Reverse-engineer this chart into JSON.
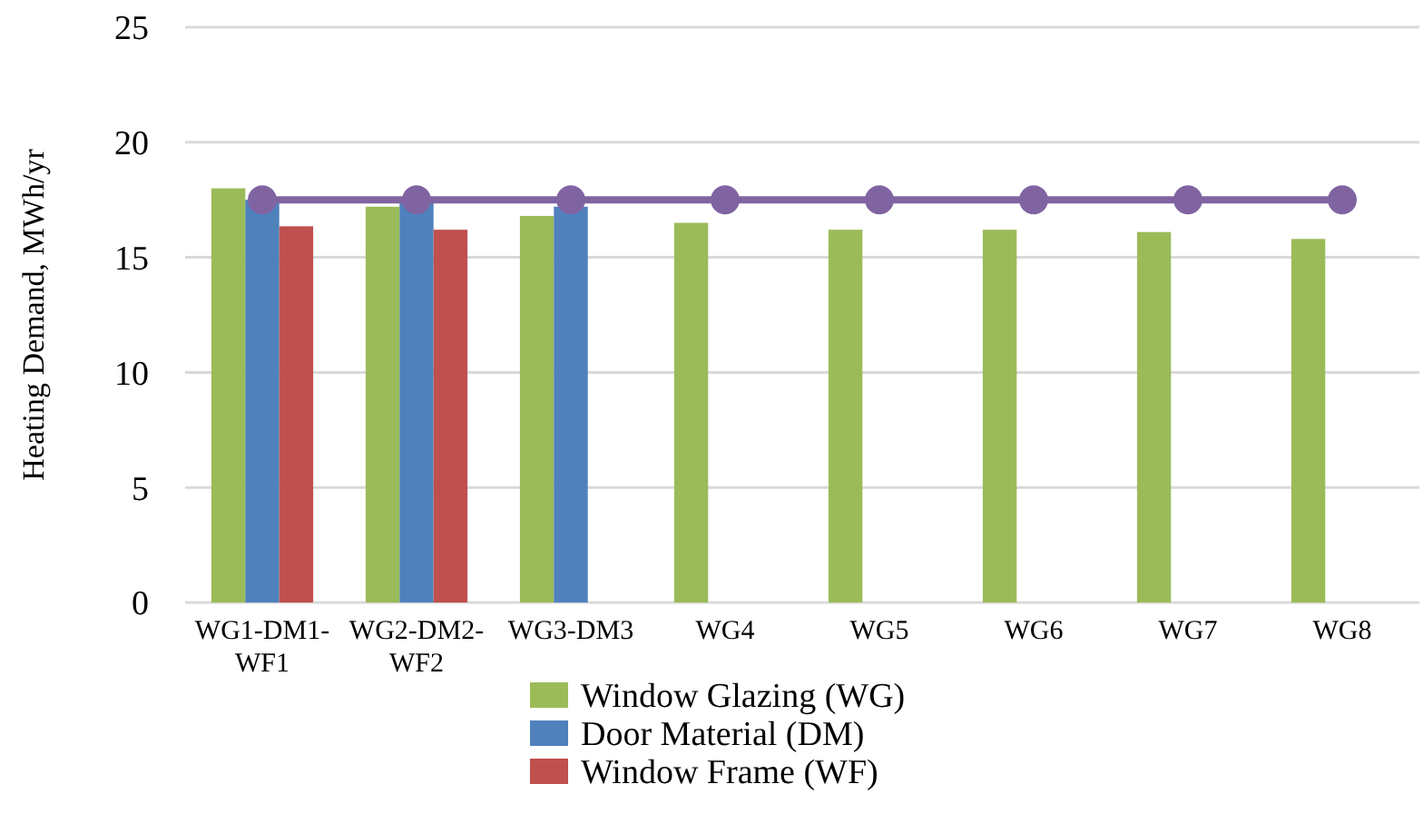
{
  "chart_data": {
    "type": "bar",
    "ylabel": "Heating Demand, MWh/yr",
    "categories": [
      "WG1-DM1-WF1",
      "WG2-DM2-WF2",
      "WG3-DM3",
      "WG4",
      "WG5",
      "WG6",
      "WG7",
      "WG8"
    ],
    "series": [
      {
        "name": "Window Glazing (WG)",
        "color": "#9bbb59",
        "values": [
          18.0,
          17.2,
          16.8,
          16.5,
          16.2,
          16.2,
          16.1,
          15.8
        ]
      },
      {
        "name": "Door Material (DM)",
        "color": "#4f81bd",
        "values": [
          17.5,
          17.5,
          17.2,
          null,
          null,
          null,
          null,
          null
        ]
      },
      {
        "name": "Window Frame (WF)",
        "color": "#c0504d",
        "values": [
          16.35,
          16.2,
          null,
          null,
          null,
          null,
          null,
          null
        ]
      },
      {
        "type": "line",
        "color": "#8064a2",
        "marker": "circle",
        "values": [
          17.5,
          17.5,
          17.5,
          17.5,
          17.5,
          17.5,
          17.5,
          17.5
        ]
      }
    ],
    "ylim": [
      0,
      25
    ],
    "yticks": [
      0,
      5,
      10,
      15,
      20,
      25
    ],
    "grid": "y",
    "legend": "bottom"
  }
}
